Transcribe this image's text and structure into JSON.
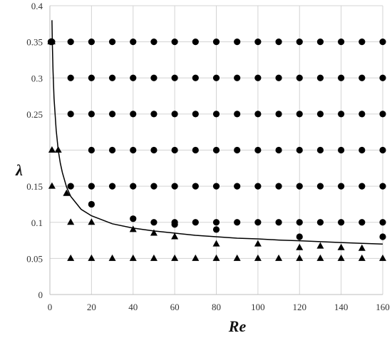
{
  "chart_data": {
    "type": "scatter",
    "title": "",
    "xlabel": "Re",
    "ylabel": "λ",
    "xlim": [
      0,
      160
    ],
    "ylim": [
      0,
      0.4
    ],
    "grid": true,
    "legend": "none",
    "x_ticks": [
      "0",
      "20",
      "40",
      "60",
      "80",
      "100",
      "120",
      "140",
      "160"
    ],
    "y_ticks": [
      "0",
      "0.05",
      "0.1",
      "0.15",
      "",
      "0.25",
      "0.3",
      "0.35",
      "0.4"
    ],
    "colors": {
      "marker": "#000000",
      "curve": "#000000",
      "grid": "#d3d3d3"
    },
    "series": [
      {
        "marker": "circle",
        "points": [
          [
            0.5,
            0.35
          ],
          [
            1,
            0.35
          ],
          [
            10,
            0.35
          ],
          [
            20,
            0.35
          ],
          [
            30,
            0.35
          ],
          [
            40,
            0.35
          ],
          [
            50,
            0.35
          ],
          [
            60,
            0.35
          ],
          [
            70,
            0.35
          ],
          [
            80,
            0.35
          ],
          [
            90,
            0.35
          ],
          [
            100,
            0.35
          ],
          [
            110,
            0.35
          ],
          [
            120,
            0.35
          ],
          [
            130,
            0.35
          ],
          [
            140,
            0.35
          ],
          [
            150,
            0.35
          ],
          [
            160,
            0.35
          ],
          [
            10,
            0.3
          ],
          [
            20,
            0.3
          ],
          [
            30,
            0.3
          ],
          [
            40,
            0.3
          ],
          [
            50,
            0.3
          ],
          [
            60,
            0.3
          ],
          [
            70,
            0.3
          ],
          [
            80,
            0.3
          ],
          [
            90,
            0.3
          ],
          [
            100,
            0.3
          ],
          [
            110,
            0.3
          ],
          [
            120,
            0.3
          ],
          [
            130,
            0.3
          ],
          [
            140,
            0.3
          ],
          [
            150,
            0.3
          ],
          [
            160,
            0.3
          ],
          [
            10,
            0.25
          ],
          [
            20,
            0.25
          ],
          [
            30,
            0.25
          ],
          [
            40,
            0.25
          ],
          [
            50,
            0.25
          ],
          [
            60,
            0.25
          ],
          [
            70,
            0.25
          ],
          [
            80,
            0.25
          ],
          [
            90,
            0.25
          ],
          [
            100,
            0.25
          ],
          [
            110,
            0.25
          ],
          [
            120,
            0.25
          ],
          [
            130,
            0.25
          ],
          [
            140,
            0.25
          ],
          [
            150,
            0.25
          ],
          [
            160,
            0.25
          ],
          [
            20,
            0.2
          ],
          [
            30,
            0.2
          ],
          [
            40,
            0.2
          ],
          [
            50,
            0.2
          ],
          [
            60,
            0.2
          ],
          [
            70,
            0.2
          ],
          [
            80,
            0.2
          ],
          [
            90,
            0.2
          ],
          [
            100,
            0.2
          ],
          [
            110,
            0.2
          ],
          [
            120,
            0.2
          ],
          [
            130,
            0.2
          ],
          [
            140,
            0.2
          ],
          [
            150,
            0.2
          ],
          [
            160,
            0.2
          ],
          [
            10,
            0.15
          ],
          [
            20,
            0.15
          ],
          [
            30,
            0.15
          ],
          [
            40,
            0.15
          ],
          [
            50,
            0.15
          ],
          [
            60,
            0.15
          ],
          [
            70,
            0.15
          ],
          [
            80,
            0.15
          ],
          [
            90,
            0.15
          ],
          [
            100,
            0.15
          ],
          [
            110,
            0.15
          ],
          [
            120,
            0.15
          ],
          [
            130,
            0.15
          ],
          [
            140,
            0.15
          ],
          [
            150,
            0.15
          ],
          [
            160,
            0.15
          ],
          [
            20,
            0.125
          ],
          [
            40,
            0.105
          ],
          [
            50,
            0.1
          ],
          [
            60,
            0.1
          ],
          [
            60,
            0.097
          ],
          [
            70,
            0.1
          ],
          [
            80,
            0.1
          ],
          [
            90,
            0.1
          ],
          [
            100,
            0.1
          ],
          [
            110,
            0.1
          ],
          [
            120,
            0.1
          ],
          [
            130,
            0.1
          ],
          [
            140,
            0.1
          ],
          [
            150,
            0.1
          ],
          [
            160,
            0.1
          ],
          [
            80,
            0.09
          ],
          [
            120,
            0.08
          ],
          [
            160,
            0.08
          ]
        ]
      },
      {
        "marker": "triangle",
        "points": [
          [
            0.5,
            0.35
          ],
          [
            1,
            0.35
          ],
          [
            1,
            0.2
          ],
          [
            4,
            0.2
          ],
          [
            1,
            0.15
          ],
          [
            8,
            0.14
          ],
          [
            10,
            0.1
          ],
          [
            20,
            0.1
          ],
          [
            40,
            0.09
          ],
          [
            50,
            0.085
          ],
          [
            60,
            0.08
          ],
          [
            80,
            0.07
          ],
          [
            100,
            0.07
          ],
          [
            120,
            0.065
          ],
          [
            130,
            0.067
          ],
          [
            140,
            0.065
          ],
          [
            150,
            0.064
          ],
          [
            10,
            0.05
          ],
          [
            20,
            0.05
          ],
          [
            30,
            0.05
          ],
          [
            40,
            0.05
          ],
          [
            50,
            0.05
          ],
          [
            60,
            0.05
          ],
          [
            70,
            0.05
          ],
          [
            80,
            0.05
          ],
          [
            90,
            0.05
          ],
          [
            100,
            0.05
          ],
          [
            110,
            0.05
          ],
          [
            120,
            0.05
          ],
          [
            130,
            0.05
          ],
          [
            140,
            0.05
          ],
          [
            150,
            0.05
          ],
          [
            160,
            0.05
          ]
        ]
      }
    ],
    "curve": {
      "type": "line",
      "points": [
        [
          1,
          0.38
        ],
        [
          1.2,
          0.345
        ],
        [
          1.5,
          0.31
        ],
        [
          2,
          0.272
        ],
        [
          3,
          0.228
        ],
        [
          4,
          0.2
        ],
        [
          5,
          0.182
        ],
        [
          6,
          0.169
        ],
        [
          8,
          0.149
        ],
        [
          10,
          0.136
        ],
        [
          15,
          0.118
        ],
        [
          20,
          0.109
        ],
        [
          30,
          0.098
        ],
        [
          40,
          0.092
        ],
        [
          50,
          0.088
        ],
        [
          60,
          0.085
        ],
        [
          70,
          0.082
        ],
        [
          80,
          0.08
        ],
        [
          90,
          0.078
        ],
        [
          100,
          0.077
        ],
        [
          110,
          0.0755
        ],
        [
          120,
          0.0745
        ],
        [
          130,
          0.0732
        ],
        [
          140,
          0.072
        ],
        [
          150,
          0.0708
        ],
        [
          160,
          0.0698
        ]
      ]
    }
  }
}
